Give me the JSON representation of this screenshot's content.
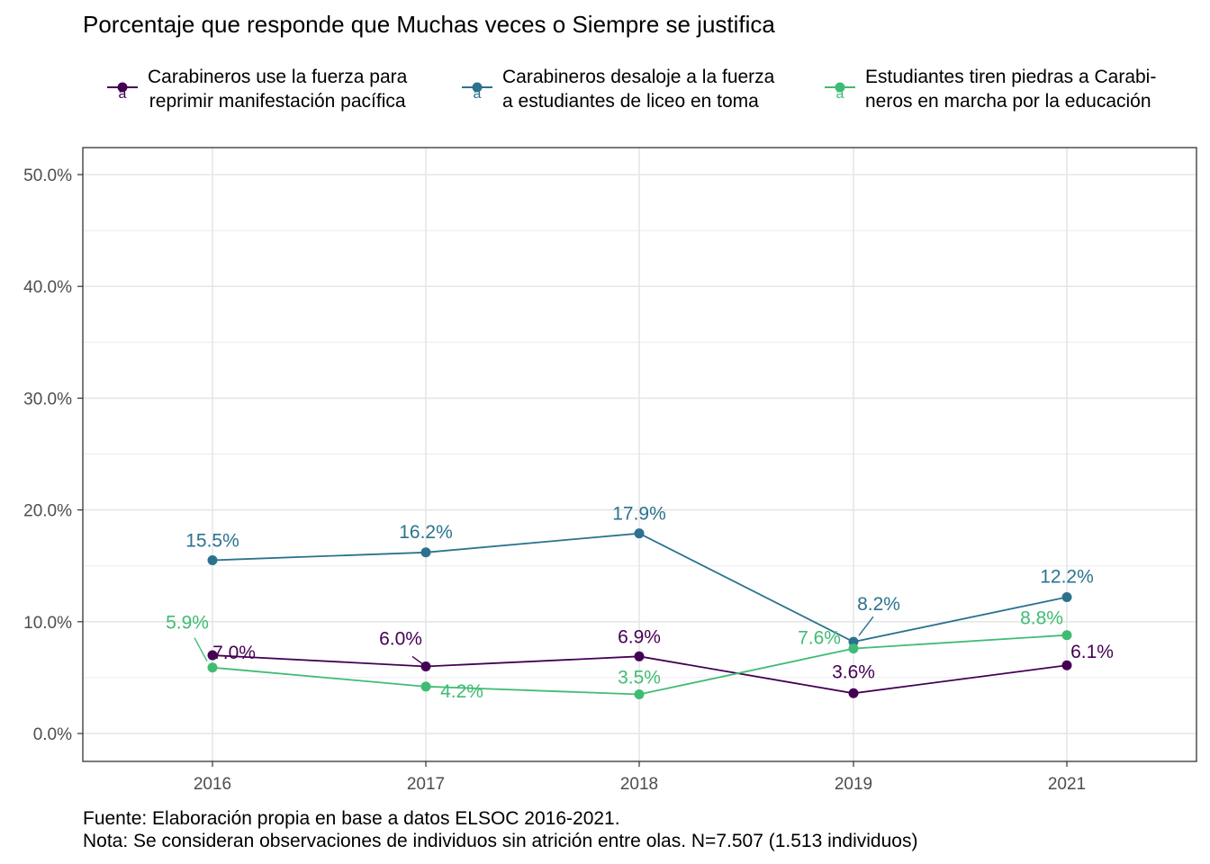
{
  "chart_data": {
    "type": "line",
    "title": "Porcentaje que responde que Muchas veces o Siempre se justifica",
    "x": [
      "2016",
      "2017",
      "2018",
      "2019",
      "2021"
    ],
    "ylim": [
      0,
      50
    ],
    "y_ticks": [
      "0.0%",
      "10.0%",
      "20.0%",
      "30.0%",
      "40.0%",
      "50.0%"
    ],
    "y_tick_values": [
      0,
      10,
      20,
      30,
      40,
      50
    ],
    "grid": true,
    "legend_position": "top",
    "series": [
      {
        "name": "Carabineros use la fuerza para reprimir manifestación pacífica",
        "legend_lines": [
          "Carabineros use la fuerza para",
          "reprimir manifestación pacífica"
        ],
        "color": "#440154",
        "values": [
          7.0,
          6.0,
          6.9,
          3.6,
          6.1
        ],
        "labels": [
          "7.0%",
          "6.0%",
          "6.9%",
          "3.6%",
          "6.1%"
        ]
      },
      {
        "name": "Carabineros desaloje a la fuerza a estudiantes de liceo en toma",
        "legend_lines": [
          "Carabineros desaloje a la fuerza",
          "a estudiantes de liceo en toma"
        ],
        "color": "#2C728E",
        "values": [
          15.5,
          16.2,
          17.9,
          8.2,
          12.2
        ],
        "labels": [
          "15.5%",
          "16.2%",
          "17.9%",
          "8.2%",
          "12.2%"
        ]
      },
      {
        "name": "Estudiantes tiren piedras a Carabineros en marcha por la educación",
        "legend_lines": [
          "Estudiantes tiren piedras a Carabi-",
          "neros en marcha por la educación"
        ],
        "color": "#3FBC73",
        "values": [
          5.9,
          4.2,
          3.5,
          7.6,
          8.8
        ],
        "labels": [
          "5.9%",
          "4.2%",
          "3.5%",
          "7.6%",
          "8.8%"
        ]
      }
    ],
    "legend_key_glyph": "a",
    "caption_lines": [
      "Fuente: Elaboración propia en base a datos ELSOC 2016-2021.",
      "Nota: Se consideran observaciones de individuos sin atrición entre olas. N=7.507 (1.513 individuos)"
    ]
  }
}
